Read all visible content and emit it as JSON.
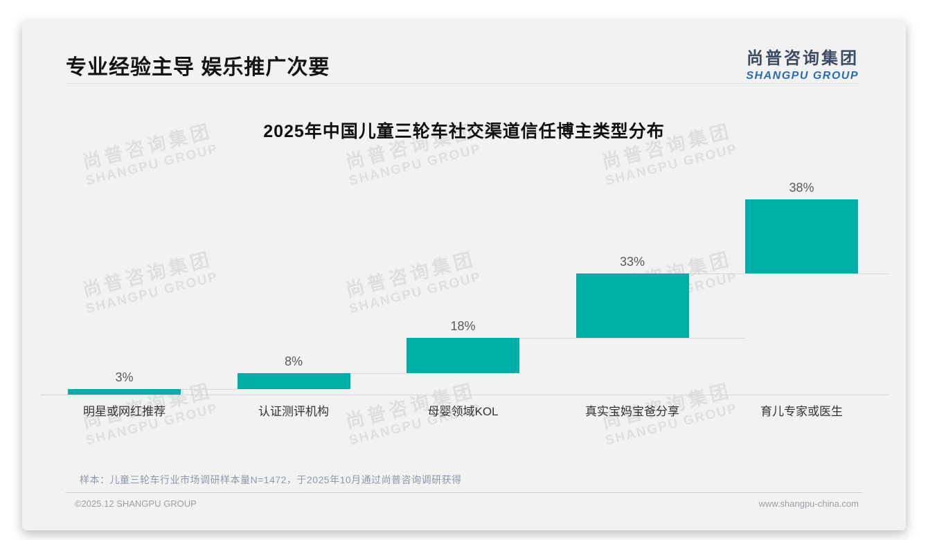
{
  "header": {
    "title": "专业经验主导 娱乐推广次要",
    "logo_cn": "尚普咨询集团",
    "logo_en": "SHANGPU GROUP"
  },
  "watermark": {
    "line1": "尚普咨询集团",
    "line2": "SHANGPU GROUP"
  },
  "chart_data": {
    "type": "bar",
    "subtype": "waterfall-steps",
    "title": "2025年中国儿童三轮车社交渠道信任博主类型分布",
    "categories": [
      "明星或网红推荐",
      "认证测评机构",
      "母婴领域KOL",
      "真实宝妈宝爸分享",
      "育儿专家或医生"
    ],
    "values": [
      3,
      8,
      18,
      33,
      38
    ],
    "data_labels": [
      "3%",
      "8%",
      "18%",
      "33%",
      "38%"
    ],
    "cumulative": [
      3,
      11,
      29,
      62,
      100
    ],
    "unit": "%",
    "ylim": [
      0,
      100
    ],
    "bar_color": "#00b0a8",
    "connector_color": "#d6d6d6",
    "grid": false,
    "legend": false
  },
  "footer": {
    "note": "样本：儿童三轮车行业市场调研样本量N=1472，于2025年10月通过尚普咨询调研获得",
    "copyright": "©2025.12 SHANGPU GROUP",
    "website": "www.shangpu-china.com"
  }
}
